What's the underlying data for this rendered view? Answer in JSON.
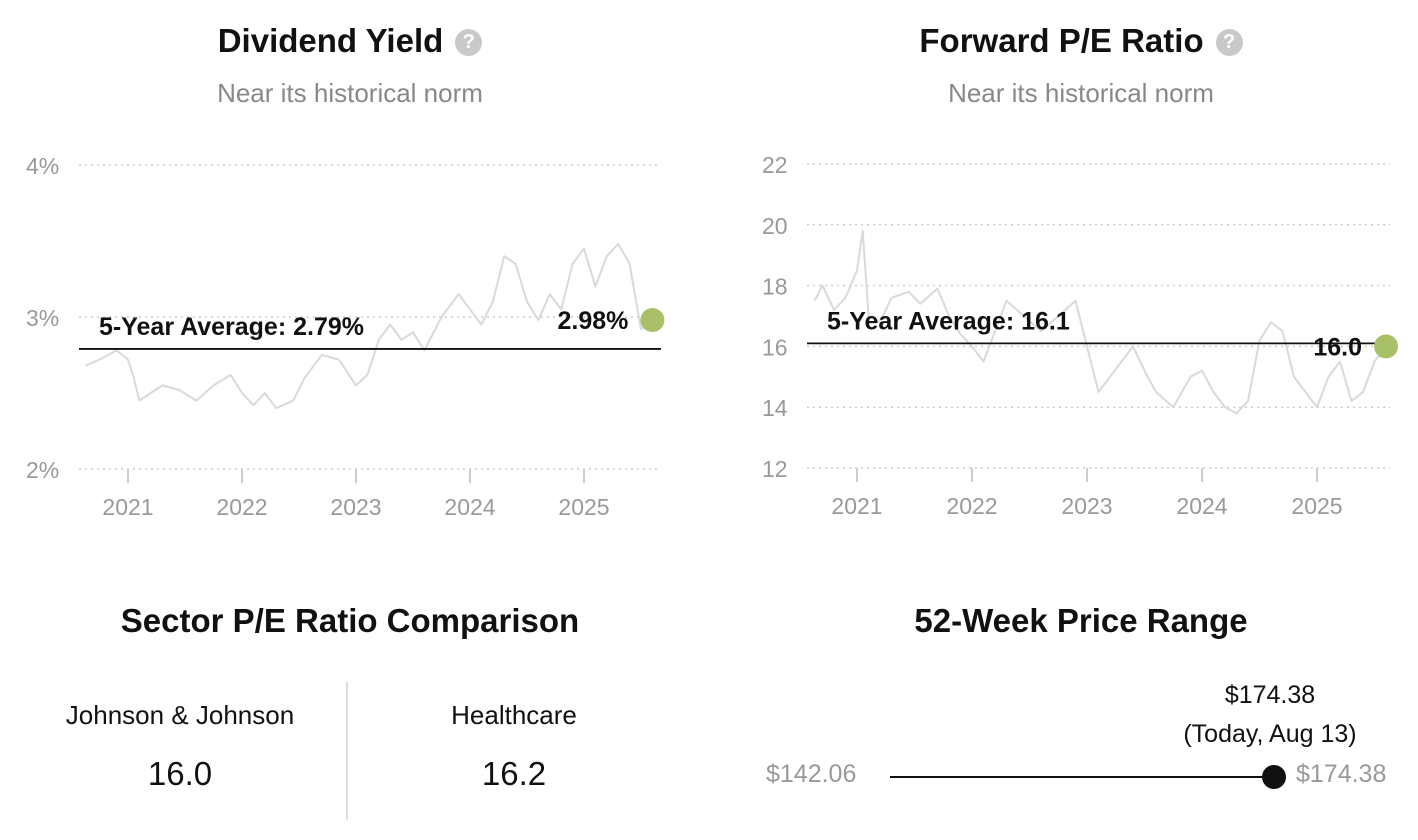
{
  "colors": {
    "series": "#d9d9d9",
    "grid": "#cccccc",
    "marker": "#a8c168",
    "axis_text": "#999999"
  },
  "dividend": {
    "title": "Dividend Yield",
    "help_icon": "question-circle-icon",
    "subtitle": "Near its historical norm",
    "avg_label": "5-Year Average: 2.79%",
    "current_label": "2.98%"
  },
  "pe": {
    "title": "Forward P/E Ratio",
    "help_icon": "question-circle-icon",
    "subtitle": "Near its historical norm",
    "avg_label": "5-Year Average: 16.1",
    "current_label": "16.0"
  },
  "chart_data": [
    {
      "type": "line",
      "title": "Dividend Yield",
      "subtitle": "Near its historical norm",
      "x_ticks": [
        "2021",
        "2022",
        "2023",
        "2024",
        "2025"
      ],
      "y_ticks": [
        "2%",
        "3%",
        "4%"
      ],
      "ylim": [
        2,
        4
      ],
      "grid": "horizontal dotted",
      "average": 2.79,
      "current": 2.98,
      "series": [
        {
          "x": [
            2020.63,
            2020.75,
            2020.9,
            2021.0,
            2021.05,
            2021.1,
            2021.2,
            2021.3,
            2021.45,
            2021.6,
            2021.75,
            2021.9,
            2022.0,
            2022.1,
            2022.2,
            2022.3,
            2022.45,
            2022.55,
            2022.7,
            2022.85,
            2023.0,
            2023.1,
            2023.2,
            2023.3,
            2023.4,
            2023.5,
            2023.6,
            2023.75,
            2023.9,
            2024.0,
            2024.1,
            2024.2,
            2024.3,
            2024.4,
            2024.5,
            2024.6,
            2024.7,
            2024.8,
            2024.9,
            2025.0,
            2025.1,
            2025.2,
            2025.3,
            2025.4,
            2025.5,
            2025.6
          ],
          "values": [
            2.68,
            2.72,
            2.78,
            2.72,
            2.6,
            2.45,
            2.5,
            2.55,
            2.52,
            2.45,
            2.55,
            2.62,
            2.5,
            2.42,
            2.5,
            2.4,
            2.45,
            2.6,
            2.75,
            2.72,
            2.55,
            2.62,
            2.85,
            2.95,
            2.85,
            2.9,
            2.78,
            3.0,
            3.15,
            3.05,
            2.95,
            3.1,
            3.4,
            3.35,
            3.1,
            2.98,
            3.15,
            3.05,
            3.35,
            3.45,
            3.2,
            3.4,
            3.48,
            3.35,
            2.92,
            2.98
          ]
        }
      ]
    },
    {
      "type": "line",
      "title": "Forward P/E Ratio",
      "subtitle": "Near its historical norm",
      "x_ticks": [
        "2021",
        "2022",
        "2023",
        "2024",
        "2025"
      ],
      "y_ticks": [
        "12",
        "14",
        "16",
        "18",
        "20",
        "22"
      ],
      "ylim": [
        12,
        22
      ],
      "grid": "horizontal dotted",
      "average": 16.1,
      "current": 16.0,
      "series": [
        {
          "x": [
            2020.63,
            2020.7,
            2020.8,
            2020.9,
            2021.0,
            2021.05,
            2021.1,
            2021.2,
            2021.3,
            2021.45,
            2021.55,
            2021.7,
            2021.8,
            2021.9,
            2022.0,
            2022.1,
            2022.2,
            2022.3,
            2022.45,
            2022.6,
            2022.75,
            2022.9,
            2023.0,
            2023.1,
            2023.2,
            2023.3,
            2023.4,
            2023.5,
            2023.6,
            2023.75,
            2023.9,
            2024.0,
            2024.1,
            2024.2,
            2024.3,
            2024.4,
            2024.5,
            2024.6,
            2024.7,
            2024.8,
            2024.9,
            2025.0,
            2025.1,
            2025.2,
            2025.3,
            2025.4,
            2025.5,
            2025.6
          ],
          "values": [
            17.5,
            18.0,
            17.2,
            17.6,
            18.5,
            19.8,
            17.0,
            16.8,
            17.6,
            17.8,
            17.4,
            17.9,
            17.0,
            16.4,
            16.0,
            15.5,
            16.5,
            17.5,
            17.0,
            16.5,
            17.0,
            17.5,
            16.0,
            14.5,
            15.0,
            15.5,
            16.0,
            15.2,
            14.5,
            14.0,
            15.0,
            15.2,
            14.5,
            14.0,
            13.8,
            14.2,
            16.2,
            16.8,
            16.5,
            15.0,
            14.5,
            14.0,
            15.0,
            15.5,
            14.2,
            14.5,
            15.5,
            16.0
          ]
        }
      ]
    }
  ],
  "sector": {
    "title": "Sector P/E Ratio Comparison",
    "company_name": "Johnson & Johnson",
    "company_value": "16.0",
    "sector_name": "Healthcare",
    "sector_value": "16.2"
  },
  "price_range": {
    "title": "52-Week Price Range",
    "low_label": "$142.06",
    "high_label": "$174.38",
    "current_price": "$174.38",
    "current_note": "(Today, Aug 13)",
    "current_fraction": 1.0
  }
}
